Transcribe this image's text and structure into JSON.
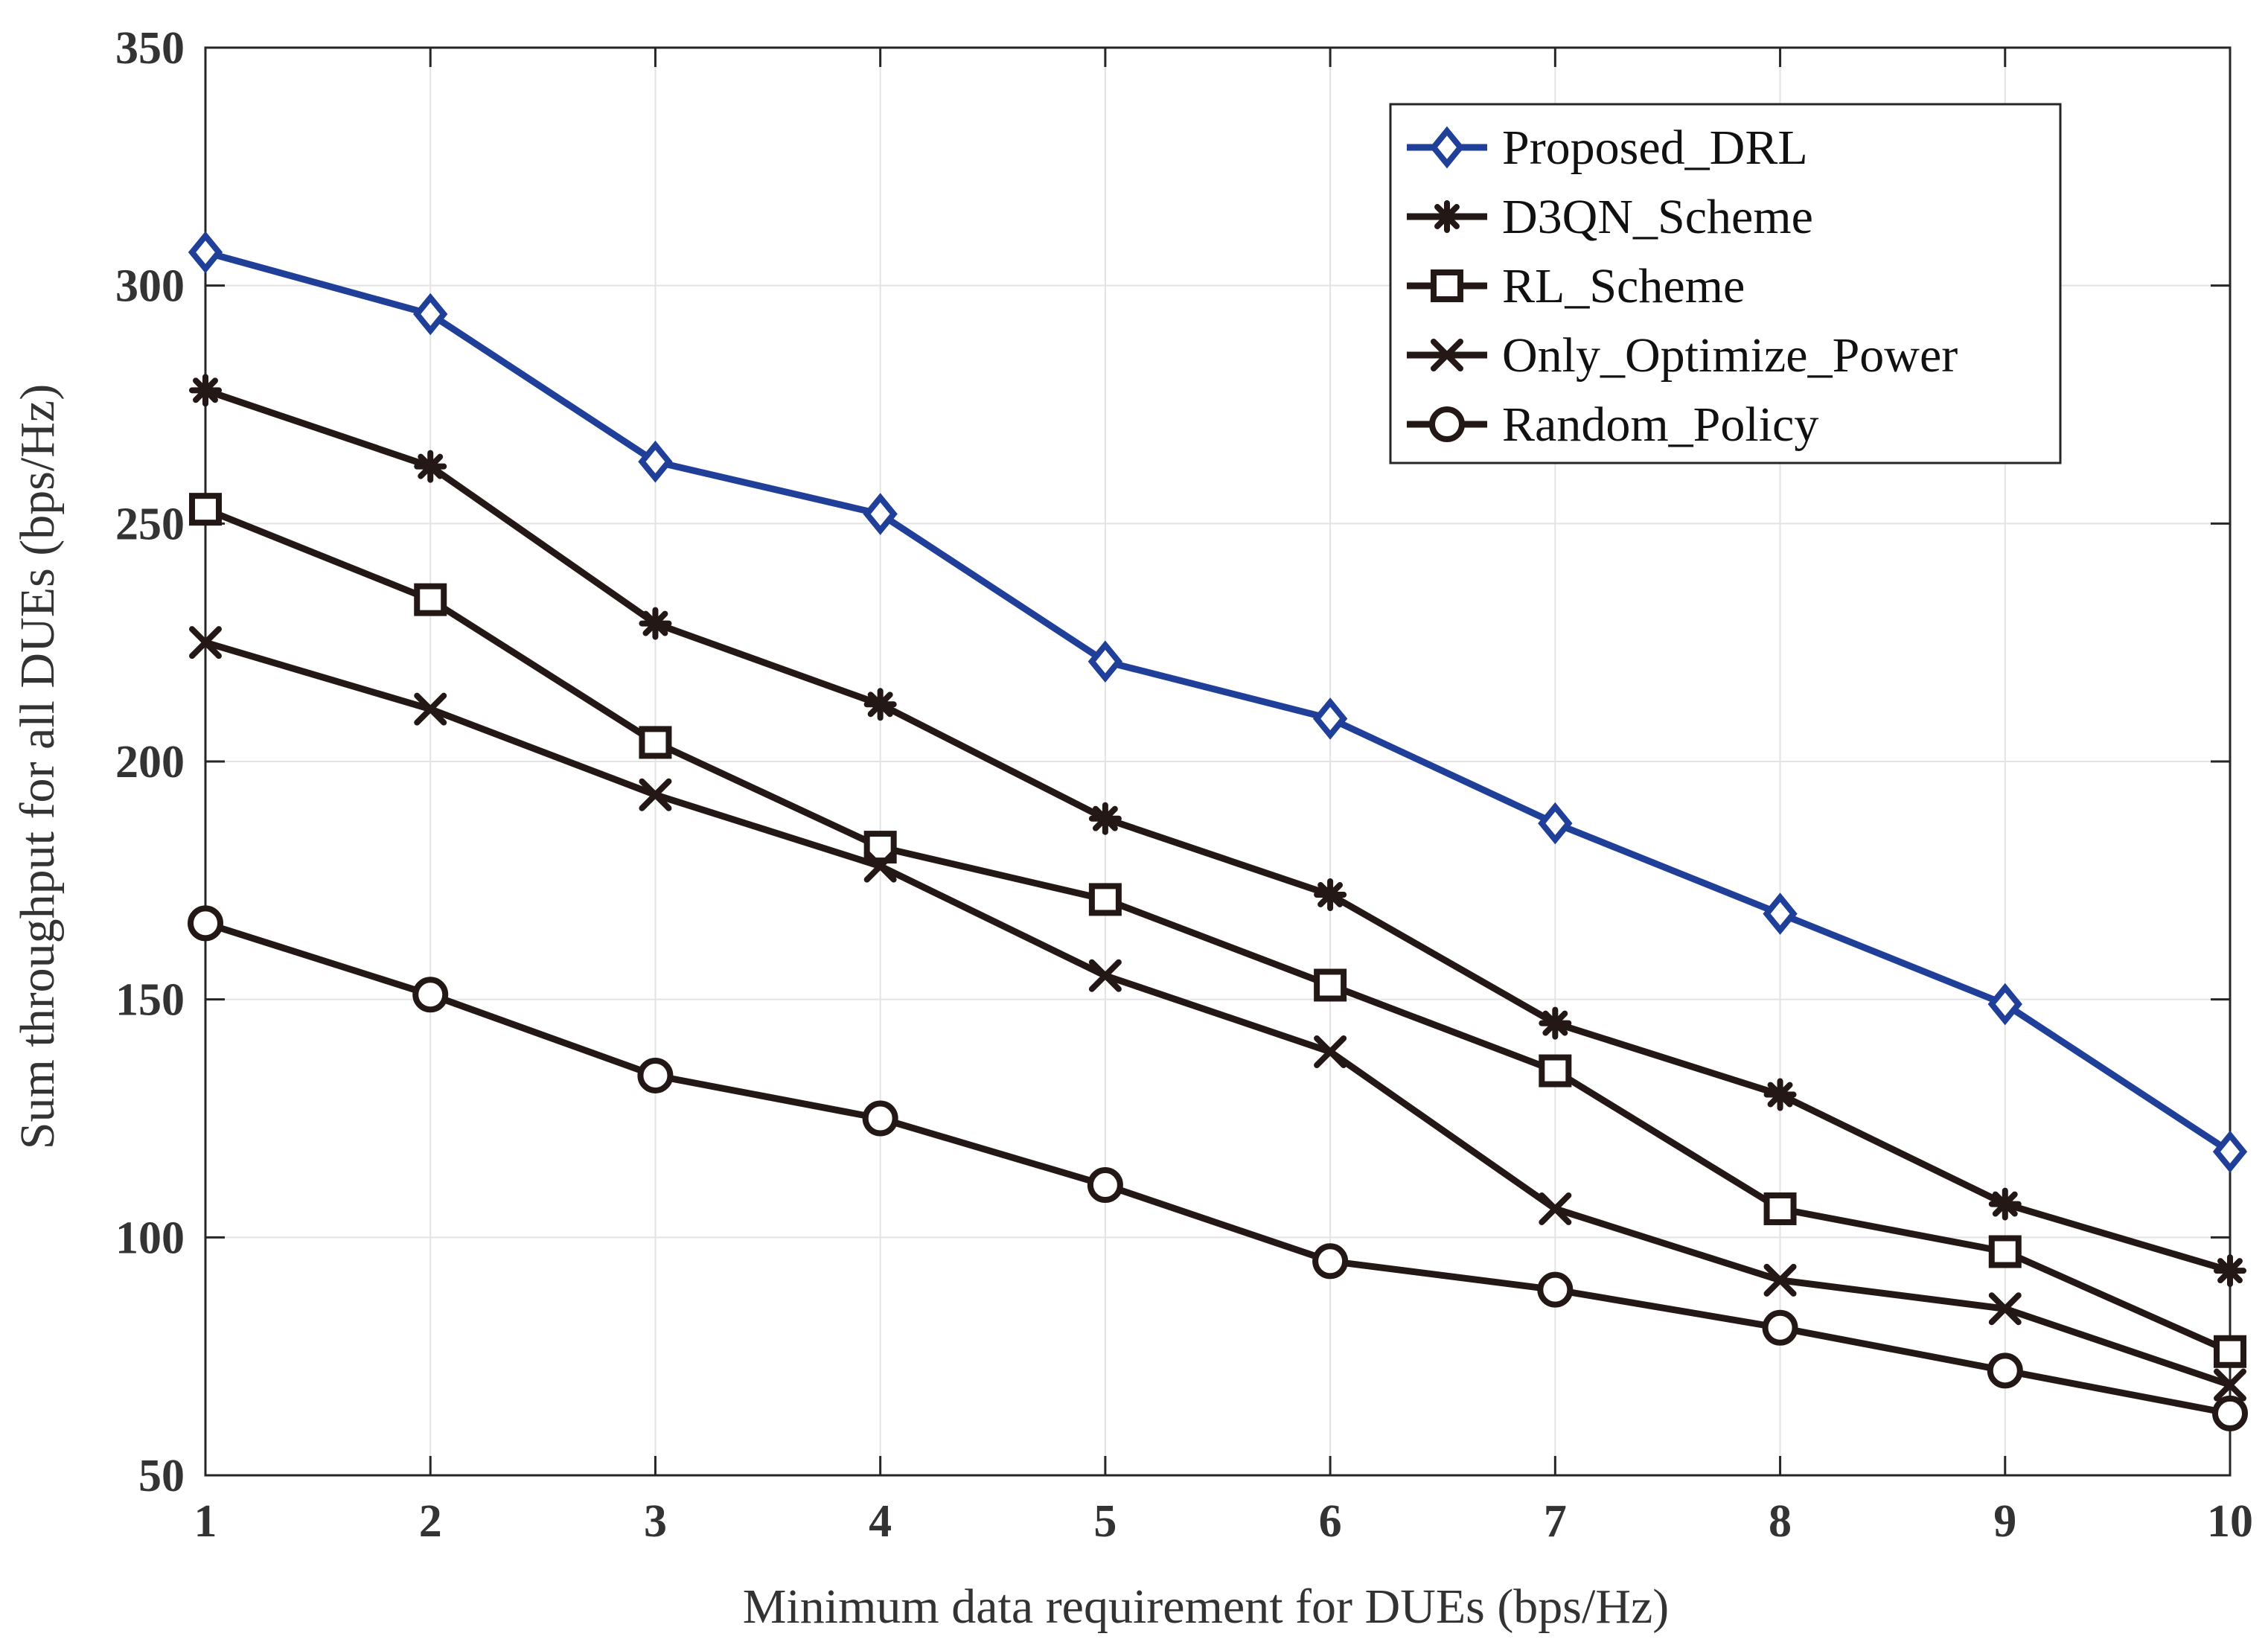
{
  "chart_data": {
    "type": "line",
    "title": "",
    "xlabel": "Minimum data requirement for DUEs (bps/Hz)",
    "ylabel": "Sum throughput for all DUEs (bps/Hz)",
    "xlim": [
      1,
      10
    ],
    "ylim": [
      50,
      350
    ],
    "x": [
      1,
      2,
      3,
      4,
      5,
      6,
      7,
      8,
      9,
      10
    ],
    "x_ticks": [
      "1",
      "2",
      "3",
      "4",
      "5",
      "6",
      "7",
      "8",
      "9",
      "10"
    ],
    "y_ticks": [
      "50",
      "100",
      "150",
      "200",
      "250",
      "300",
      "350"
    ],
    "grid": true,
    "legend_position": "top-right",
    "series": [
      {
        "name": "Proposed_DRL",
        "color": "#1f3f99",
        "marker": "diamond",
        "values": [
          307,
          294,
          263,
          252,
          221,
          209,
          187,
          168,
          149,
          118
        ]
      },
      {
        "name": "D3QN_Scheme",
        "color": "#231815",
        "marker": "asterisk",
        "values": [
          278,
          262,
          229,
          212,
          188,
          172,
          145,
          130,
          107,
          93
        ]
      },
      {
        "name": "RL_Scheme",
        "color": "#231815",
        "marker": "square",
        "values": [
          253,
          234,
          204,
          182,
          171,
          153,
          135,
          106,
          97,
          76
        ]
      },
      {
        "name": "Only_Optimize_Power",
        "color": "#231815",
        "marker": "x",
        "values": [
          225,
          211,
          193,
          178,
          155,
          139,
          106,
          91,
          85,
          69
        ]
      },
      {
        "name": "Random_Policy",
        "color": "#231815",
        "marker": "circle",
        "values": [
          166,
          151,
          134,
          125,
          111,
          95,
          89,
          81,
          72,
          63
        ]
      }
    ]
  }
}
